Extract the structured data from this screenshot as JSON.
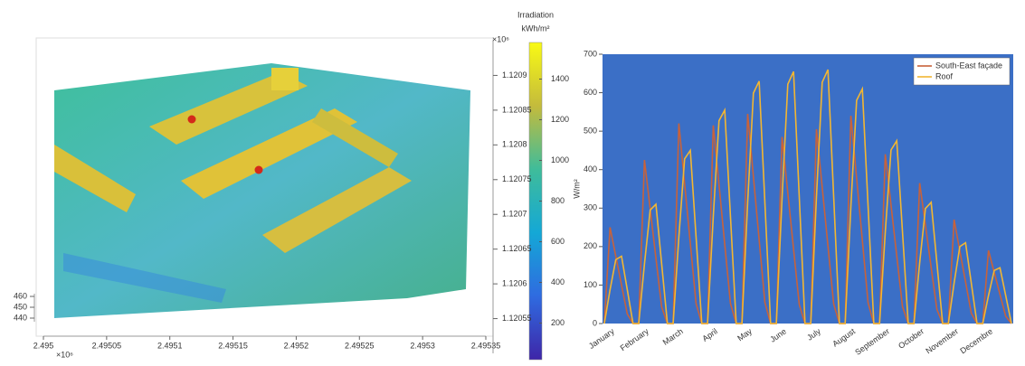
{
  "chart_data": [
    {
      "type": "point-cloud-3d",
      "colorbar_title": [
        "Irradiation",
        "kWh/m²"
      ],
      "xlim": [
        2.495,
        2.49535
      ],
      "xticks": [
        2.495,
        2.49505,
        2.4951,
        2.49515,
        2.4952,
        2.49525,
        2.4953,
        2.49535
      ],
      "x_exponent": "×10⁶",
      "ylim": [
        1.1205,
        1.12095
      ],
      "yticks": [
        1.12055,
        1.1206,
        1.12065,
        1.1207,
        1.12075,
        1.1208,
        1.12085,
        1.1209
      ],
      "y_exponent": "×10⁶",
      "zlim": [
        437,
        462
      ],
      "zticks": [
        440,
        450,
        460
      ],
      "clim": [
        20,
        1580
      ],
      "cticks": [
        200,
        400,
        600,
        800,
        1000,
        1200,
        1400
      ]
    },
    {
      "type": "line",
      "ylabel": "W/m²",
      "categories": [
        null,
        "January",
        null,
        null,
        null,
        null,
        null,
        "February",
        null,
        null,
        null,
        null,
        null,
        "March",
        null,
        null,
        null,
        null,
        null,
        "April",
        null,
        null,
        null,
        null,
        null,
        "May",
        null,
        null,
        null,
        null,
        null,
        "June",
        null,
        null,
        null,
        null,
        null,
        "July",
        null,
        null,
        null,
        null,
        null,
        "August",
        null,
        null,
        null,
        null,
        null,
        "September",
        null,
        null,
        null,
        null,
        null,
        "October",
        null,
        null,
        null,
        null,
        null,
        "November",
        null,
        null,
        null,
        null,
        null,
        "Decembre",
        null,
        null,
        null,
        null
      ],
      "series": [
        {
          "name": "South-East façade",
          "color": "#c8623a",
          "values": [
            0,
            250,
            175,
            100,
            25,
            0,
            0,
            425,
            298,
            170,
            43,
            0,
            0,
            520,
            364,
            208,
            52,
            0,
            0,
            515,
            361,
            206,
            52,
            0,
            0,
            545,
            382,
            218,
            55,
            0,
            0,
            485,
            340,
            194,
            49,
            0,
            0,
            505,
            354,
            202,
            51,
            0,
            0,
            540,
            378,
            216,
            54,
            0,
            0,
            440,
            308,
            176,
            44,
            0,
            0,
            365,
            256,
            146,
            37,
            0,
            0,
            270,
            189,
            108,
            27,
            0,
            0,
            190,
            133,
            76,
            19,
            0
          ]
        },
        {
          "name": "Roof",
          "color": "#f2b632",
          "values": [
            0,
            88,
            166,
            175,
            88,
            0,
            0,
            155,
            295,
            310,
            155,
            0,
            0,
            225,
            428,
            450,
            225,
            0,
            0,
            278,
            527,
            555,
            278,
            0,
            0,
            315,
            599,
            630,
            315,
            0,
            0,
            328,
            622,
            655,
            328,
            0,
            0,
            330,
            627,
            660,
            330,
            0,
            0,
            305,
            580,
            610,
            305,
            0,
            0,
            238,
            451,
            475,
            238,
            0,
            0,
            158,
            299,
            315,
            158,
            0,
            0,
            105,
            200,
            210,
            105,
            0,
            0,
            73,
            138,
            145,
            73,
            0
          ]
        }
      ],
      "ylim": [
        0,
        700
      ],
      "yticks": [
        0,
        100,
        200,
        300,
        400,
        500,
        600,
        700
      ],
      "legend": "upper right"
    }
  ]
}
